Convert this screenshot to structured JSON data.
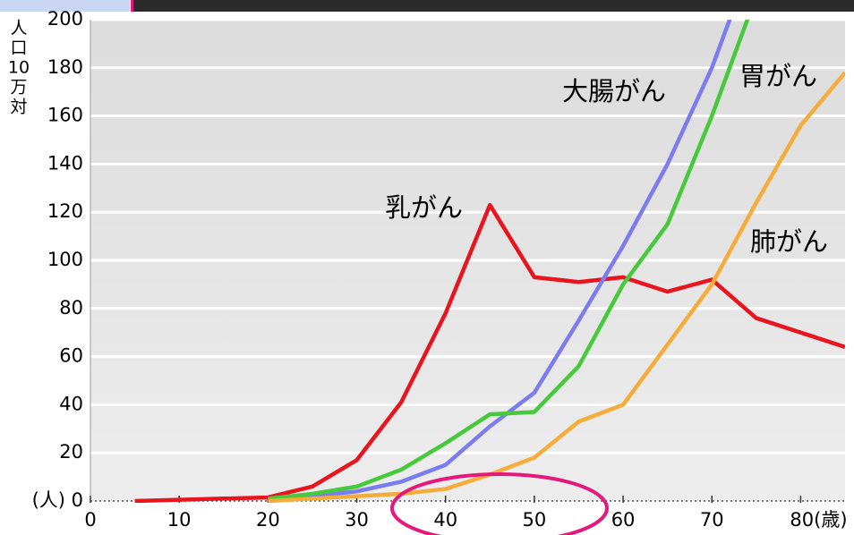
{
  "chart_data": {
    "type": "line",
    "ylabel_lines": [
      "人",
      "口",
      "10",
      "万",
      "対"
    ],
    "xlim": [
      0,
      85
    ],
    "xticks": [
      0,
      10,
      20,
      30,
      40,
      50,
      60,
      70,
      {
        "value": 80,
        "label": "80(歳)"
      }
    ],
    "ylim": [
      0,
      200
    ],
    "yticks": [
      {
        "value": 0,
        "label": "(人) 0"
      },
      20,
      40,
      60,
      80,
      100,
      120,
      140,
      160,
      180,
      200
    ],
    "grid": true,
    "series": [
      {
        "name": "乳がん",
        "color": "#e8141e",
        "x": [
          5,
          10,
          15,
          20,
          25,
          30,
          35,
          40,
          45,
          50,
          55,
          60,
          65,
          70,
          75,
          80,
          85
        ],
        "values": [
          0,
          0.5,
          1,
          1.5,
          6,
          17,
          41,
          78,
          123,
          93,
          91,
          93,
          87,
          92,
          76,
          70,
          64
        ]
      },
      {
        "name": "大腸がん",
        "color": "#7b7cf0",
        "x": [
          20,
          25,
          30,
          35,
          40,
          45,
          50,
          55,
          60,
          65,
          70,
          75
        ],
        "values": [
          1,
          2,
          4,
          8,
          15,
          31,
          45,
          75,
          106,
          140,
          180,
          230
        ]
      },
      {
        "name": "胃がん",
        "color": "#46c93a",
        "x": [
          20,
          25,
          30,
          35,
          40,
          45,
          50,
          55,
          60,
          65,
          70,
          75
        ],
        "values": [
          1,
          3,
          6,
          13,
          24,
          36,
          37,
          56,
          90,
          115,
          160,
          210
        ]
      },
      {
        "name": "肺がん",
        "color": "#f5ac3a",
        "x": [
          20,
          25,
          30,
          35,
          40,
          45,
          50,
          55,
          60,
          65,
          70,
          75,
          80,
          85
        ],
        "values": [
          0,
          1,
          2,
          3,
          5,
          11,
          18,
          33,
          40,
          65,
          90,
          124,
          156,
          178
        ]
      }
    ]
  }
}
